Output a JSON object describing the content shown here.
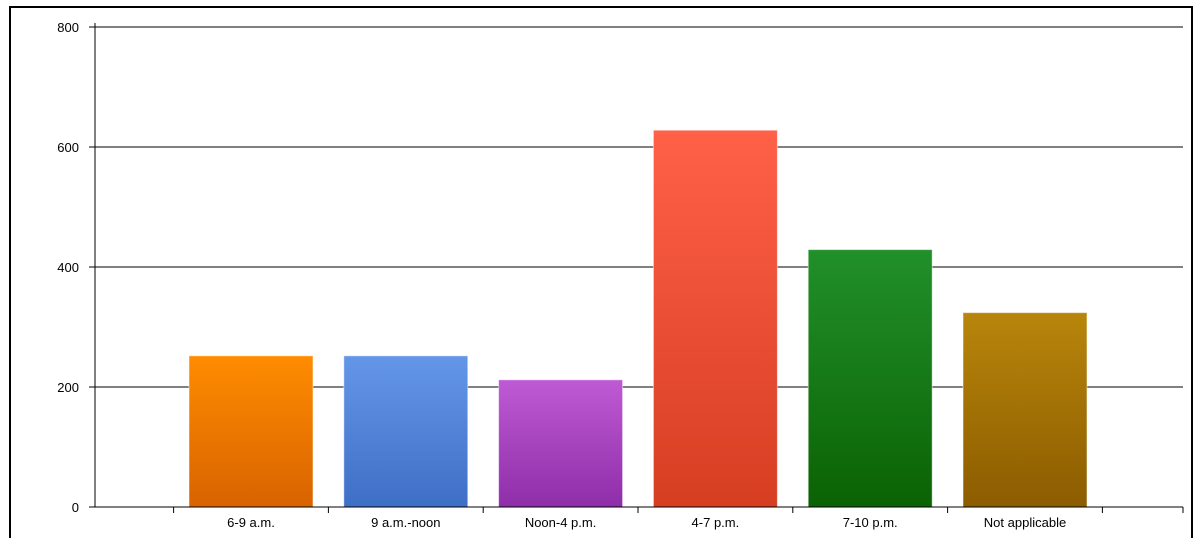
{
  "chart_data": {
    "type": "bar",
    "title": "",
    "xlabel": "",
    "ylabel": "",
    "categories": [
      "6-9 a.m.",
      "9 a.m.-noon",
      "Noon-4 p.m.",
      "4-7 p.m.",
      "7-10 p.m.",
      "Not applicable"
    ],
    "values": [
      252,
      252,
      212,
      628,
      429,
      324
    ],
    "ylim": [
      0,
      800
    ],
    "yticks": [
      0,
      200,
      400,
      600,
      800
    ],
    "grid": true,
    "legend": "none",
    "colors": [
      [
        "#ff8c00",
        "#d86300"
      ],
      [
        "#6496e8",
        "#3e6fc6"
      ],
      [
        "#be5ad4",
        "#8e2ea8"
      ],
      [
        "#ff6048",
        "#d63e22"
      ],
      [
        "#21902a",
        "#0b6203"
      ],
      [
        "#b8860b",
        "#8c5c00"
      ]
    ]
  }
}
